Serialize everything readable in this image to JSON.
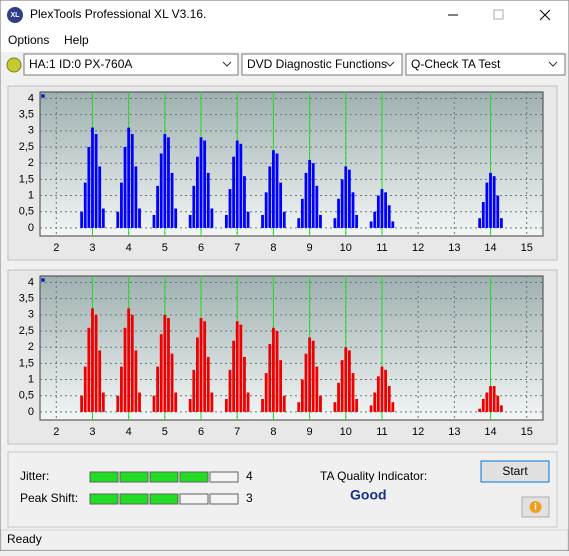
{
  "window": {
    "title": "PlexTools Professional XL V3.16."
  },
  "menu": [
    "Options",
    "Help"
  ],
  "toolbar": {
    "drive": "HA:1 ID:0  PX-760A",
    "function": "DVD Diagnostic Functions",
    "test": "Q-Check TA Test"
  },
  "chart_data": [
    {
      "type": "bar",
      "color": "#0000ff",
      "x": [
        2.7,
        2.8,
        2.9,
        3,
        3.1,
        3.2,
        3.3,
        3.7,
        3.8,
        3.9,
        4,
        4.1,
        4.2,
        4.3,
        4.7,
        4.8,
        4.9,
        5,
        5.1,
        5.2,
        5.3,
        5.7,
        5.8,
        5.9,
        6,
        6.1,
        6.2,
        6.3,
        6.7,
        6.8,
        6.9,
        7,
        7.1,
        7.2,
        7.3,
        7.7,
        7.8,
        7.9,
        8,
        8.1,
        8.2,
        8.3,
        8.7,
        8.8,
        8.9,
        9,
        9.1,
        9.2,
        9.3,
        9.7,
        9.8,
        9.9,
        10,
        10.1,
        10.2,
        10.3,
        10.7,
        10.8,
        10.9,
        11,
        11.1,
        11.2,
        11.3,
        13.7,
        13.8,
        13.9,
        14,
        14.1,
        14.2,
        14.3
      ],
      "values": [
        0.5,
        1.4,
        2.5,
        3.1,
        2.9,
        1.9,
        0.6,
        0.5,
        1.4,
        2.5,
        3.1,
        2.9,
        1.9,
        0.6,
        0.4,
        1.3,
        2.3,
        2.9,
        2.8,
        1.7,
        0.6,
        0.4,
        1.3,
        2.2,
        2.8,
        2.7,
        1.7,
        0.6,
        0.4,
        1.2,
        2.2,
        2.7,
        2.6,
        1.6,
        0.5,
        0.4,
        1.1,
        1.9,
        2.4,
        2.3,
        1.4,
        0.5,
        0.3,
        0.9,
        1.7,
        2.1,
        2.0,
        1.3,
        0.4,
        0.3,
        0.9,
        1.5,
        1.9,
        1.8,
        1.1,
        0.4,
        0.2,
        0.5,
        1.0,
        1.2,
        1.1,
        0.7,
        0.2,
        0.3,
        0.8,
        1.4,
        1.7,
        1.6,
        1.0,
        0.3
      ],
      "xlim": [
        1.55,
        15.45
      ],
      "ylim": [
        -0.25,
        4.2
      ],
      "xticks": [
        2,
        3,
        4,
        5,
        6,
        7,
        8,
        9,
        10,
        11,
        12,
        13,
        14,
        15
      ],
      "yticks": [
        0,
        {
          "value": 0.5,
          "label": "0,5"
        },
        1,
        {
          "value": 1.5,
          "label": "1,5"
        },
        2,
        {
          "value": 2.5,
          "label": "2,5"
        },
        3,
        {
          "value": 3.5,
          "label": "3,5"
        },
        4
      ],
      "reference_x": [
        3,
        4,
        5,
        6,
        7,
        8,
        9,
        10,
        11,
        14
      ],
      "reference_color": "#22dd22",
      "grid": true
    },
    {
      "type": "bar",
      "color": "#ee0000",
      "x": [
        2.7,
        2.8,
        2.9,
        3,
        3.1,
        3.2,
        3.3,
        3.7,
        3.8,
        3.9,
        4,
        4.1,
        4.2,
        4.3,
        4.7,
        4.8,
        4.9,
        5,
        5.1,
        5.2,
        5.3,
        5.7,
        5.8,
        5.9,
        6,
        6.1,
        6.2,
        6.3,
        6.7,
        6.8,
        6.9,
        7,
        7.1,
        7.2,
        7.3,
        7.7,
        7.8,
        7.9,
        8,
        8.1,
        8.2,
        8.3,
        8.7,
        8.8,
        8.9,
        9,
        9.1,
        9.2,
        9.3,
        9.7,
        9.8,
        9.9,
        10,
        10.1,
        10.2,
        10.3,
        10.7,
        10.8,
        10.9,
        11,
        11.1,
        11.2,
        11.3,
        13.7,
        13.8,
        13.9,
        14,
        14.1,
        14.2,
        14.3
      ],
      "values": [
        0.5,
        1.4,
        2.6,
        3.2,
        3.0,
        1.9,
        0.6,
        0.5,
        1.4,
        2.6,
        3.2,
        3.0,
        1.9,
        0.6,
        0.5,
        1.4,
        2.4,
        3.0,
        2.9,
        1.8,
        0.6,
        0.4,
        1.3,
        2.3,
        2.9,
        2.8,
        1.7,
        0.6,
        0.4,
        1.3,
        2.2,
        2.8,
        2.7,
        1.7,
        0.6,
        0.4,
        1.2,
        2.1,
        2.6,
        2.5,
        1.6,
        0.5,
        0.3,
        1.0,
        1.8,
        2.3,
        2.2,
        1.4,
        0.5,
        0.3,
        0.9,
        1.6,
        2.0,
        1.9,
        1.2,
        0.4,
        0.2,
        0.6,
        1.1,
        1.4,
        1.3,
        0.8,
        0.3,
        0.1,
        0.4,
        0.6,
        0.8,
        0.8,
        0.5,
        0.2
      ],
      "xlim": [
        1.55,
        15.45
      ],
      "ylim": [
        -0.25,
        4.2
      ],
      "xticks": [
        2,
        3,
        4,
        5,
        6,
        7,
        8,
        9,
        10,
        11,
        12,
        13,
        14,
        15
      ],
      "yticks": [
        0,
        {
          "value": 0.5,
          "label": "0,5"
        },
        1,
        {
          "value": 1.5,
          "label": "1,5"
        },
        2,
        {
          "value": 2.5,
          "label": "2,5"
        },
        3,
        {
          "value": 3.5,
          "label": "3,5"
        },
        4
      ],
      "reference_x": [
        3,
        4,
        5,
        6,
        7,
        8,
        9,
        10,
        11,
        14
      ],
      "reference_color": "#22dd22",
      "grid": true
    }
  ],
  "results": {
    "jitter": {
      "label": "Jitter:",
      "value": 4,
      "segments": 5
    },
    "peak_shift": {
      "label": "Peak Shift:",
      "value": 3,
      "segments": 5
    },
    "ta_quality": {
      "label": "TA Quality Indicator:",
      "value": "Good"
    },
    "start_button": "Start"
  },
  "status": "Ready"
}
